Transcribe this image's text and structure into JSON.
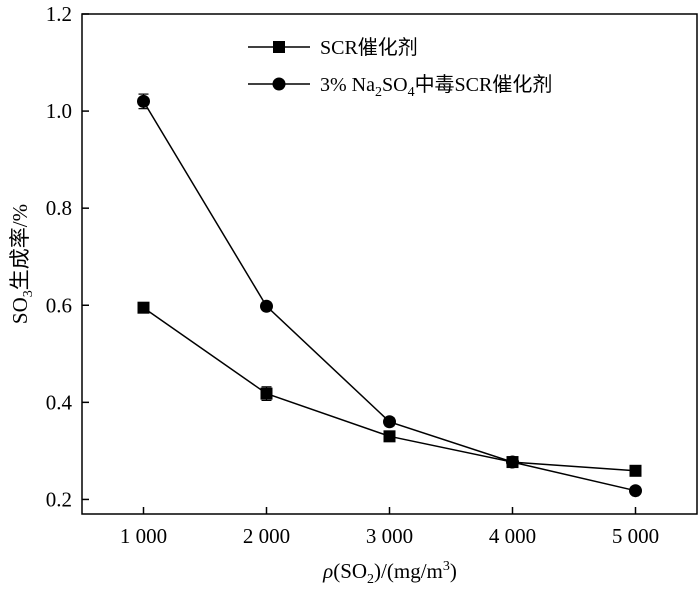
{
  "chart_data": {
    "type": "line",
    "xlabel": {
      "rho": "ρ",
      "paren_open": "(SO",
      "sub": "2",
      "rest": ")/(mg/m",
      "sup": "3",
      "close": ")"
    },
    "ylabel": {
      "pre": "SO",
      "sub": "3",
      "post": "生成率/%"
    },
    "x_tick_labels": [
      "1 000",
      "2 000",
      "3 000",
      "4 000",
      "5 000"
    ],
    "y_tick_labels": [
      "0.2",
      "0.4",
      "0.6",
      "0.8",
      "1.0",
      "1.2"
    ],
    "x_ticks": [
      1000,
      2000,
      3000,
      4000,
      5000
    ],
    "y_ticks": [
      0.2,
      0.4,
      0.6,
      0.8,
      1.0,
      1.2
    ],
    "xlim": [
      500,
      5500
    ],
    "ylim": [
      0.17,
      1.2
    ],
    "grid": false,
    "legend_position": "top-right",
    "x": [
      1000,
      2000,
      3000,
      4000,
      5000
    ],
    "series": [
      {
        "legend": {
          "text": "SCR催化剂"
        },
        "marker": "square",
        "values": [
          0.595,
          0.418,
          0.33,
          0.277,
          0.259
        ],
        "errors": [
          0.008,
          0.014,
          0.008,
          0.008,
          0.006
        ]
      },
      {
        "legend": {
          "pre": "3% Na",
          "sub1": "2",
          "mid": "SO",
          "sub2": "4",
          "post": "中毒SCR催化剂"
        },
        "marker": "circle",
        "values": [
          1.02,
          0.598,
          0.36,
          0.277,
          0.218
        ],
        "errors": [
          0.015,
          0.006,
          0.008,
          0.006,
          0.006
        ]
      }
    ]
  }
}
